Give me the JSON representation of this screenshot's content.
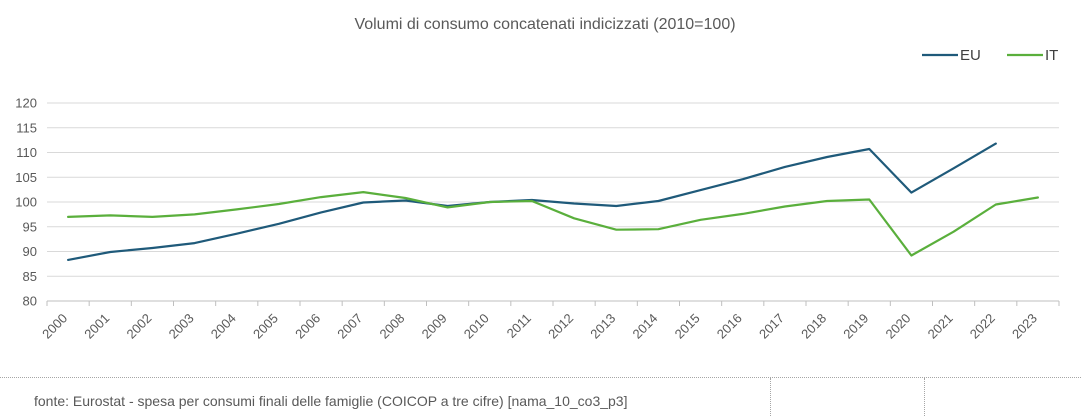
{
  "chart_data": {
    "type": "line",
    "title": "Volumi di consumo concatenati indicizzati (2010=100)",
    "xlabel": "",
    "ylabel": "",
    "x": [
      "2000",
      "2001",
      "2002",
      "2003",
      "2004",
      "2005",
      "2006",
      "2007",
      "2008",
      "2009",
      "2010",
      "2011",
      "2012",
      "2013",
      "2014",
      "2015",
      "2016",
      "2017",
      "2018",
      "2019",
      "2020",
      "2021",
      "2022",
      "2023"
    ],
    "ylim": [
      80,
      120
    ],
    "yticks": [
      "80",
      "85",
      "90",
      "95",
      "100",
      "105",
      "110",
      "115",
      "120"
    ],
    "grid": true,
    "legend_position": "top-right",
    "series": [
      {
        "name": "EU",
        "color": "#1f5a7a",
        "values": [
          88.3,
          89.9,
          90.7,
          91.7,
          93.6,
          95.6,
          97.9,
          99.9,
          100.3,
          99.2,
          100.0,
          100.4,
          99.7,
          99.2,
          100.2,
          102.4,
          104.6,
          107.1,
          109.1,
          110.7,
          101.9,
          106.8,
          111.8,
          null
        ]
      },
      {
        "name": "IT",
        "color": "#5aaf3c",
        "values": [
          97.0,
          97.3,
          97.0,
          97.5,
          98.5,
          99.6,
          101.0,
          102.0,
          100.8,
          98.9,
          100.0,
          100.2,
          96.7,
          94.4,
          94.5,
          96.4,
          97.6,
          99.1,
          100.2,
          100.5,
          89.2,
          94.0,
          99.5,
          100.9
        ]
      }
    ]
  },
  "footer": {
    "source": "fonte: Eurostat - spesa per consumi finali delle famiglie (COICOP a tre cifre) [nama_10_co3_p3]"
  }
}
